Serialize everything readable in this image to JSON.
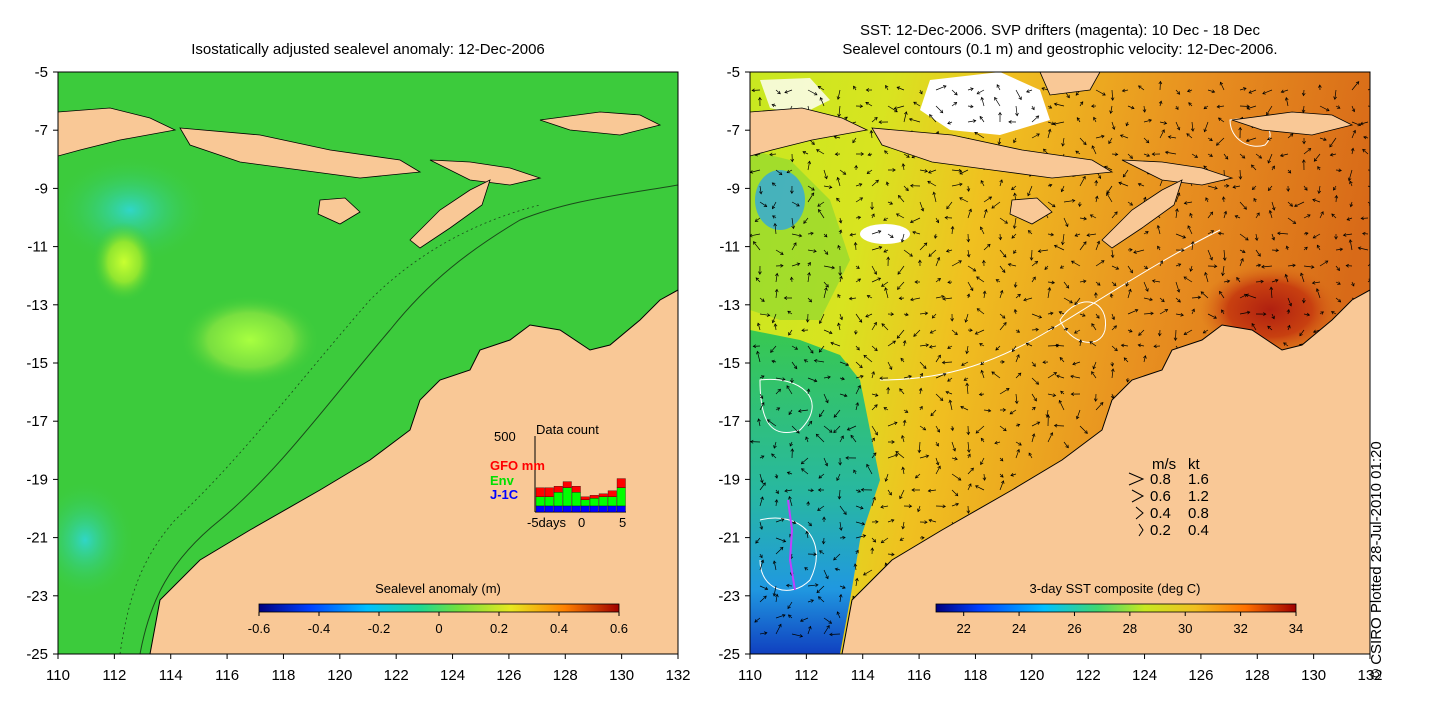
{
  "left_panel": {
    "title": "Isostatically adjusted sealevel anomaly: 12-Dec-2006",
    "colorbar": {
      "label": "Sealevel anomaly (m)",
      "ticks": [
        "-0.6",
        "-0.4",
        "-0.2",
        "0",
        "0.2",
        "0.4",
        "0.6"
      ]
    },
    "inset": {
      "title": "Data count",
      "ymax_label": "500",
      "legend": [
        {
          "label": "GFO mm",
          "color": "#ff0000"
        },
        {
          "label": "Env",
          "color": "#00ff00"
        },
        {
          "label": "J-1C",
          "color": "#0000ff"
        }
      ],
      "xlabels": [
        "-5days",
        "0",
        "5"
      ]
    }
  },
  "right_panel": {
    "title_line1": "SST: 12-Dec-2006. SVP drifters (magenta): 10 Dec - 18 Dec",
    "title_line2": "Sealevel contours (0.1 m) and geostrophic velocity: 12-Dec-2006.",
    "colorbar": {
      "label": "3-day SST composite (deg C)",
      "ticks": [
        "22",
        "24",
        "26",
        "28",
        "30",
        "32",
        "34"
      ]
    },
    "velocity_legend": {
      "header_ms": "m/s",
      "header_kt": "kt",
      "rows": [
        {
          "ms": "0.8",
          "kt": "1.6"
        },
        {
          "ms": "0.6",
          "kt": "1.2"
        },
        {
          "ms": "0.4",
          "kt": "0.8"
        },
        {
          "ms": "0.2",
          "kt": "0.4"
        }
      ]
    }
  },
  "axes": {
    "y_ticks": [
      "-5",
      "-7",
      "-9",
      "-11",
      "-13",
      "-15",
      "-17",
      "-19",
      "-21",
      "-23",
      "-25"
    ],
    "x_ticks": [
      "110",
      "112",
      "114",
      "116",
      "118",
      "120",
      "122",
      "124",
      "126",
      "128",
      "130",
      "132"
    ]
  },
  "credit": "© CSIRO Plotted 28-Jul-2010 01:20",
  "chart_data": [
    {
      "type": "heatmap",
      "title": "Isostatically adjusted sealevel anomaly: 12-Dec-2006",
      "x_range": [
        110,
        132
      ],
      "y_range": [
        -25,
        -5
      ],
      "colorbar_range": [
        -0.6,
        0.6
      ],
      "colorbar_label": "Sealevel anomaly (m)"
    },
    {
      "type": "heatmap",
      "title": "SST: 12-Dec-2006. SVP drifters (magenta): 10 Dec - 18 Dec",
      "x_range": [
        110,
        132
      ],
      "y_range": [
        -25,
        -5
      ],
      "colorbar_range": [
        21,
        34
      ],
      "colorbar_label": "3-day SST composite (deg C)"
    },
    {
      "type": "bar",
      "title": "Data count",
      "ylim": [
        0,
        500
      ],
      "series": [
        {
          "name": "GFO mm",
          "values": [
            60,
            60,
            40,
            40,
            40,
            20,
            20,
            20,
            40,
            60
          ]
        },
        {
          "name": "Env",
          "values": [
            60,
            60,
            90,
            120,
            90,
            40,
            50,
            60,
            60,
            120
          ]
        },
        {
          "name": "J-1C",
          "values": [
            40,
            40,
            40,
            40,
            40,
            40,
            40,
            40,
            40,
            40
          ]
        }
      ]
    }
  ]
}
